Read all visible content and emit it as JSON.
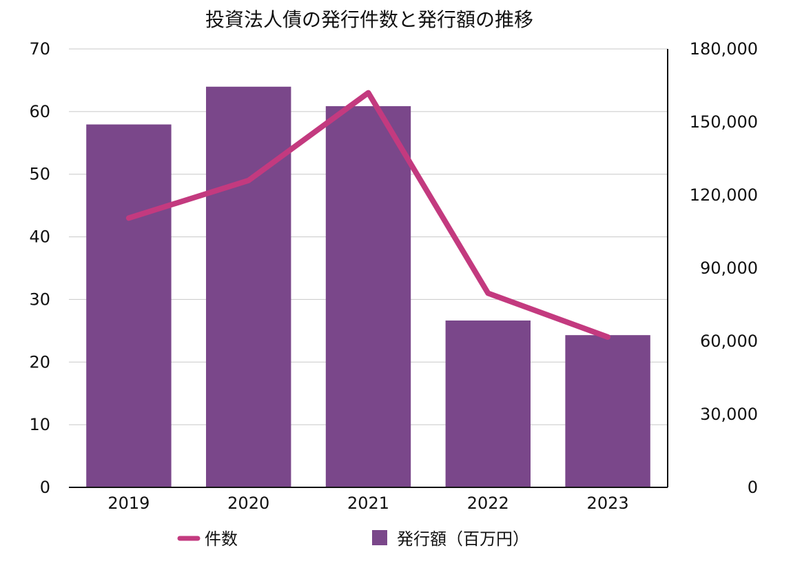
{
  "chart_data": {
    "type": "bar",
    "title": "投資法人債の発行件数と発行額の推移",
    "categories": [
      "2019",
      "2020",
      "2021",
      "2022",
      "2023"
    ],
    "series": [
      {
        "name": "発行額（百万円）",
        "type": "bar",
        "axis": "right",
        "values": [
          149000,
          164500,
          156500,
          68500,
          62500
        ]
      },
      {
        "name": "件数",
        "type": "line",
        "axis": "left",
        "values": [
          43,
          49,
          63,
          31,
          24
        ]
      }
    ],
    "left_axis": {
      "ylim": [
        0,
        70
      ],
      "ticks": [
        "0",
        "10",
        "20",
        "30",
        "40",
        "50",
        "60",
        "70"
      ]
    },
    "right_axis": {
      "ylim": [
        0,
        180000
      ],
      "ticks": [
        "0",
        "30,000",
        "60,000",
        "90,000",
        "120,000",
        "150,000",
        "180,000"
      ]
    },
    "grid": true,
    "legend_position": "bottom",
    "colors": {
      "bar": "#7A478A",
      "line": "#C33A7F",
      "grid": "#C8C8C8",
      "axis": "#111111"
    }
  }
}
